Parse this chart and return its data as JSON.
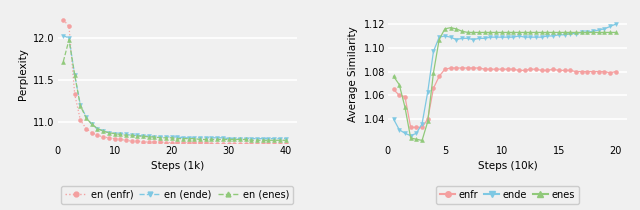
{
  "left": {
    "xlabel": "Steps (1k)",
    "ylabel": "Perplexity",
    "xlim": [
      0,
      42
    ],
    "ylim": [
      10.75,
      12.38
    ],
    "yticks": [
      11.0,
      11.5,
      12.0
    ],
    "xticks": [
      0,
      10,
      20,
      30,
      40
    ],
    "series": {
      "enfr": {
        "color": "#f4a0a0",
        "marker": "o",
        "linestyle": ":",
        "x": [
          1,
          2,
          3,
          4,
          5,
          6,
          7,
          8,
          9,
          10,
          11,
          12,
          13,
          14,
          15,
          16,
          17,
          18,
          19,
          20,
          21,
          22,
          23,
          24,
          25,
          26,
          27,
          28,
          29,
          30,
          31,
          32,
          33,
          34,
          35,
          36,
          37,
          38,
          39,
          40
        ],
        "y": [
          12.22,
          12.14,
          11.33,
          11.02,
          10.92,
          10.87,
          10.84,
          10.82,
          10.81,
          10.8,
          10.79,
          10.78,
          10.77,
          10.77,
          10.76,
          10.76,
          10.76,
          10.76,
          10.75,
          10.75,
          10.75,
          10.75,
          10.75,
          10.75,
          10.75,
          10.75,
          10.74,
          10.74,
          10.74,
          10.74,
          10.74,
          10.74,
          10.74,
          10.74,
          10.74,
          10.74,
          10.74,
          10.74,
          10.74,
          10.74
        ]
      },
      "ende": {
        "color": "#7ec8e3",
        "marker": "v",
        "linestyle": "--",
        "x": [
          1,
          2,
          3,
          4,
          5,
          6,
          7,
          8,
          9,
          10,
          11,
          12,
          13,
          14,
          15,
          16,
          17,
          18,
          19,
          20,
          21,
          22,
          23,
          24,
          25,
          26,
          27,
          28,
          29,
          30,
          31,
          32,
          33,
          34,
          35,
          36,
          37,
          38,
          39,
          40
        ],
        "y": [
          12.03,
          12.0,
          11.56,
          11.2,
          11.06,
          10.97,
          10.92,
          10.89,
          10.87,
          10.86,
          10.86,
          10.85,
          10.84,
          10.84,
          10.83,
          10.83,
          10.82,
          10.82,
          10.82,
          10.82,
          10.82,
          10.81,
          10.81,
          10.81,
          10.81,
          10.81,
          10.81,
          10.81,
          10.81,
          10.8,
          10.8,
          10.8,
          10.8,
          10.8,
          10.8,
          10.8,
          10.8,
          10.8,
          10.8,
          10.8
        ]
      },
      "enes": {
        "color": "#90c97a",
        "marker": "^",
        "linestyle": "--",
        "x": [
          1,
          2,
          3,
          4,
          5,
          6,
          7,
          8,
          9,
          10,
          11,
          12,
          13,
          14,
          15,
          16,
          17,
          18,
          19,
          20,
          21,
          22,
          23,
          24,
          25,
          26,
          27,
          28,
          29,
          30,
          31,
          32,
          33,
          34,
          35,
          36,
          37,
          38,
          39,
          40
        ],
        "y": [
          11.72,
          11.98,
          11.56,
          11.19,
          11.05,
          10.97,
          10.92,
          10.89,
          10.87,
          10.86,
          10.85,
          10.84,
          10.84,
          10.83,
          10.83,
          10.82,
          10.82,
          10.81,
          10.81,
          10.81,
          10.8,
          10.8,
          10.8,
          10.8,
          10.79,
          10.79,
          10.79,
          10.79,
          10.79,
          10.79,
          10.79,
          10.79,
          10.79,
          10.78,
          10.78,
          10.78,
          10.78,
          10.78,
          10.78,
          10.78
        ]
      }
    },
    "legend_labels": [
      "en (enfr)",
      "en (ende)",
      "en (enes)"
    ]
  },
  "right": {
    "xlabel": "Steps (10k)",
    "ylabel": "Average Similarity",
    "xlim": [
      0,
      21
    ],
    "ylim": [
      1.02,
      1.135
    ],
    "yticks": [
      1.04,
      1.06,
      1.08,
      1.1,
      1.12
    ],
    "xticks": [
      0,
      5,
      10,
      15,
      20
    ],
    "series": {
      "enfr": {
        "color": "#f4a0a0",
        "marker": "o",
        "linestyle": "-",
        "x": [
          0.5,
          1,
          1.5,
          2,
          2.5,
          3,
          3.5,
          4,
          4.5,
          5,
          5.5,
          6,
          6.5,
          7,
          7.5,
          8,
          8.5,
          9,
          9.5,
          10,
          10.5,
          11,
          11.5,
          12,
          12.5,
          13,
          13.5,
          14,
          14.5,
          15,
          15.5,
          16,
          16.5,
          17,
          17.5,
          18,
          18.5,
          19,
          19.5,
          20
        ],
        "y": [
          1.065,
          1.06,
          1.059,
          1.033,
          1.033,
          1.033,
          1.04,
          1.066,
          1.076,
          1.082,
          1.083,
          1.083,
          1.083,
          1.083,
          1.083,
          1.083,
          1.082,
          1.082,
          1.082,
          1.082,
          1.082,
          1.082,
          1.081,
          1.081,
          1.082,
          1.082,
          1.081,
          1.081,
          1.082,
          1.081,
          1.081,
          1.081,
          1.08,
          1.08,
          1.08,
          1.08,
          1.08,
          1.08,
          1.079,
          1.08
        ]
      },
      "ende": {
        "color": "#7ec8e3",
        "marker": "v",
        "linestyle": "-",
        "x": [
          0.5,
          1,
          1.5,
          2,
          2.5,
          3,
          3.5,
          4,
          4.5,
          5,
          5.5,
          6,
          6.5,
          7,
          7.5,
          8,
          8.5,
          9,
          9.5,
          10,
          10.5,
          11,
          11.5,
          12,
          12.5,
          13,
          13.5,
          14,
          14.5,
          15,
          15.5,
          16,
          16.5,
          17,
          17.5,
          18,
          18.5,
          19,
          19.5,
          20
        ],
        "y": [
          1.04,
          1.031,
          1.028,
          1.026,
          1.028,
          1.036,
          1.063,
          1.097,
          1.109,
          1.11,
          1.109,
          1.107,
          1.108,
          1.108,
          1.107,
          1.108,
          1.108,
          1.109,
          1.109,
          1.109,
          1.109,
          1.109,
          1.11,
          1.109,
          1.109,
          1.109,
          1.109,
          1.11,
          1.11,
          1.111,
          1.111,
          1.112,
          1.112,
          1.113,
          1.113,
          1.114,
          1.115,
          1.116,
          1.118,
          1.12
        ]
      },
      "enes": {
        "color": "#90c97a",
        "marker": "^",
        "linestyle": "-",
        "x": [
          0.5,
          1,
          1.5,
          2,
          2.5,
          3,
          3.5,
          4,
          4.5,
          5,
          5.5,
          6,
          6.5,
          7,
          7.5,
          8,
          8.5,
          9,
          9.5,
          10,
          10.5,
          11,
          11.5,
          12,
          12.5,
          13,
          13.5,
          14,
          14.5,
          15,
          15.5,
          16,
          16.5,
          17,
          17.5,
          18,
          18.5,
          19,
          19.5,
          20
        ],
        "y": [
          1.076,
          1.069,
          1.05,
          1.024,
          1.023,
          1.022,
          1.038,
          1.079,
          1.107,
          1.116,
          1.117,
          1.116,
          1.114,
          1.113,
          1.113,
          1.113,
          1.113,
          1.113,
          1.113,
          1.113,
          1.113,
          1.113,
          1.113,
          1.113,
          1.113,
          1.113,
          1.113,
          1.113,
          1.113,
          1.113,
          1.113,
          1.113,
          1.113,
          1.113,
          1.113,
          1.113,
          1.113,
          1.113,
          1.113,
          1.113
        ]
      }
    },
    "legend_labels": [
      "enfr",
      "ende",
      "enes"
    ]
  },
  "background_color": "#f0f0f0",
  "grid_color": "#ffffff",
  "font_size": 7.5
}
